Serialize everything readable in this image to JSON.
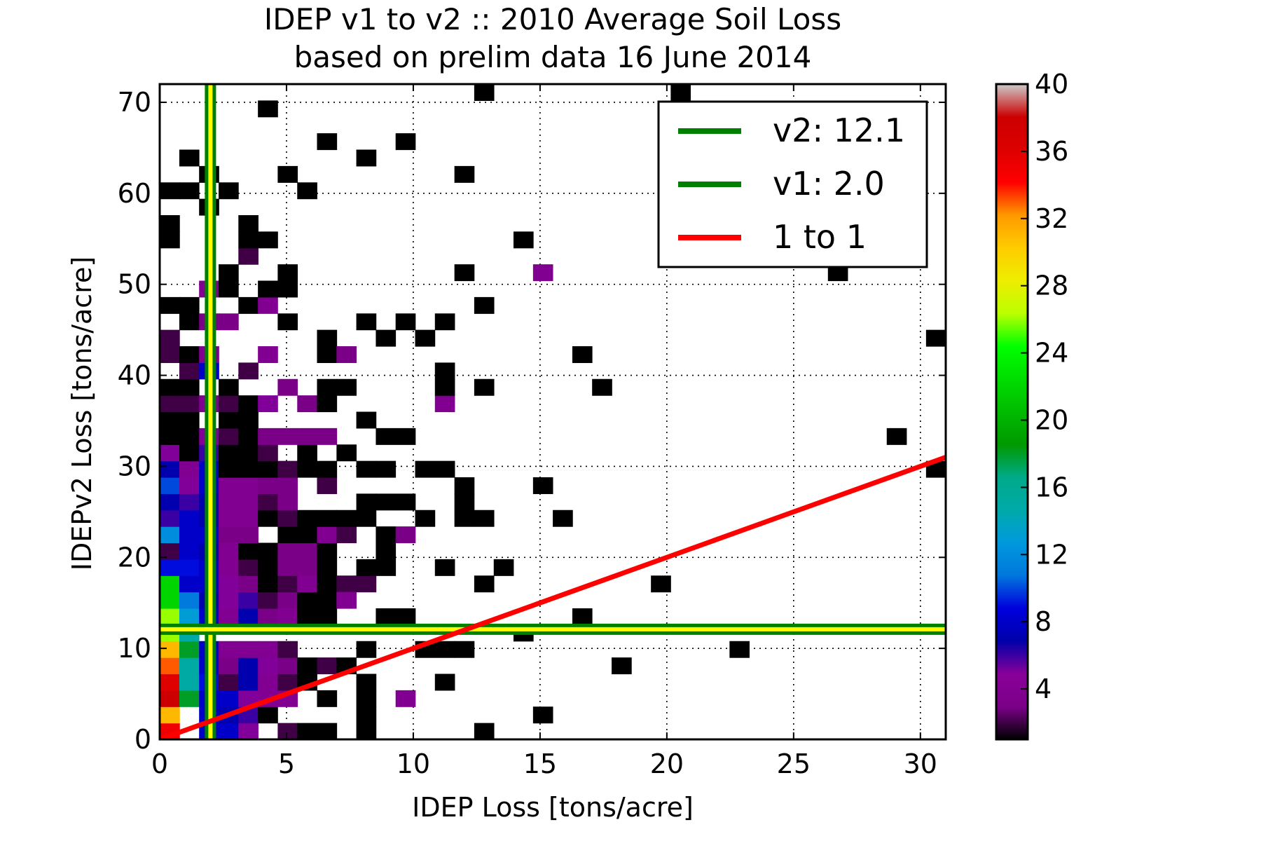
{
  "chart_data": {
    "type": "heatmap",
    "title": "IDEP v1 to v2 :: 2010 Average Soil Loss",
    "subtitle": "based on prelim data 16 June 2014",
    "xlabel": "IDEP Loss [tons/acre]",
    "ylabel": "IDEPv2 Loss [tons/acre]",
    "xlim": [
      0,
      31
    ],
    "ylim": [
      0,
      72
    ],
    "xticks": [
      0,
      5,
      10,
      15,
      20,
      25,
      30
    ],
    "yticks": [
      0,
      10,
      20,
      30,
      40,
      50,
      60,
      70
    ],
    "grid": true,
    "bin_width_x": 0.775,
    "bin_height_y": 1.8,
    "colorbar": {
      "min": 1,
      "max": 40,
      "ticks": [
        4,
        8,
        12,
        16,
        20,
        24,
        28,
        32,
        36,
        40
      ],
      "colormap": "nipy_spectral"
    },
    "cells": [
      [
        0.39,
        0.9,
        35
      ],
      [
        0.39,
        2.7,
        31
      ],
      [
        0.39,
        4.5,
        38
      ],
      [
        0.39,
        6.3,
        36
      ],
      [
        0.39,
        8.1,
        33
      ],
      [
        0.39,
        9.9,
        31
      ],
      [
        0.39,
        11.7,
        26
      ],
      [
        0.39,
        13.5,
        26
      ],
      [
        0.39,
        15.3,
        22
      ],
      [
        0.39,
        17.1,
        22
      ],
      [
        0.39,
        18.9,
        9
      ],
      [
        0.39,
        20.7,
        2
      ],
      [
        0.39,
        22.5,
        12
      ],
      [
        0.39,
        24.3,
        6
      ],
      [
        0.39,
        26.1,
        7
      ],
      [
        0.39,
        27.9,
        10
      ],
      [
        0.39,
        29.7,
        7
      ],
      [
        0.39,
        31.5,
        5
      ],
      [
        0.39,
        33.3,
        1
      ],
      [
        0.39,
        35.1,
        1
      ],
      [
        0.39,
        36.9,
        2
      ],
      [
        0.39,
        38.7,
        1
      ],
      [
        0.39,
        42.3,
        2
      ],
      [
        0.39,
        44.1,
        2
      ],
      [
        0.39,
        47.7,
        1
      ],
      [
        0.39,
        54.9,
        1
      ],
      [
        0.39,
        56.7,
        1
      ],
      [
        0.39,
        60.3,
        1
      ],
      [
        1.16,
        4.5,
        18
      ],
      [
        1.16,
        6.3,
        15
      ],
      [
        1.16,
        8.1,
        15
      ],
      [
        1.16,
        9.9,
        18
      ],
      [
        1.16,
        11.7,
        15
      ],
      [
        1.16,
        13.5,
        13
      ],
      [
        1.16,
        15.3,
        11
      ],
      [
        1.16,
        17.1,
        8
      ],
      [
        1.16,
        18.9,
        9
      ],
      [
        1.16,
        20.7,
        8
      ],
      [
        1.16,
        22.5,
        8
      ],
      [
        1.16,
        24.3,
        8
      ],
      [
        1.16,
        26.1,
        6
      ],
      [
        1.16,
        27.9,
        5
      ],
      [
        1.16,
        29.7,
        4
      ],
      [
        1.16,
        31.5,
        1
      ],
      [
        1.16,
        33.3,
        1
      ],
      [
        1.16,
        35.1,
        1
      ],
      [
        1.16,
        36.9,
        2
      ],
      [
        1.16,
        38.7,
        1
      ],
      [
        1.16,
        40.5,
        2
      ],
      [
        1.16,
        42.3,
        1
      ],
      [
        1.16,
        45.9,
        1
      ],
      [
        1.16,
        47.7,
        1
      ],
      [
        1.16,
        60.3,
        1
      ],
      [
        1.16,
        63.9,
        1
      ],
      [
        1.94,
        0.9,
        8
      ],
      [
        1.94,
        2.7,
        8
      ],
      [
        1.94,
        4.5,
        8
      ],
      [
        1.94,
        6.3,
        9
      ],
      [
        1.94,
        8.1,
        8
      ],
      [
        1.94,
        9.9,
        8
      ],
      [
        1.94,
        13.5,
        8
      ],
      [
        1.94,
        15.3,
        7
      ],
      [
        1.94,
        17.1,
        8
      ],
      [
        1.94,
        18.9,
        8
      ],
      [
        1.94,
        20.7,
        7
      ],
      [
        1.94,
        22.5,
        8
      ],
      [
        1.94,
        24.3,
        7
      ],
      [
        1.94,
        26.1,
        7
      ],
      [
        1.94,
        27.9,
        8
      ],
      [
        1.94,
        29.7,
        8
      ],
      [
        1.94,
        31.5,
        6
      ],
      [
        1.94,
        33.3,
        5
      ],
      [
        1.94,
        36.9,
        4
      ],
      [
        1.94,
        40.5,
        8
      ],
      [
        1.94,
        42.3,
        4
      ],
      [
        1.94,
        45.9,
        3
      ],
      [
        1.94,
        49.5,
        4
      ],
      [
        1.94,
        58.5,
        1
      ],
      [
        1.94,
        62.1,
        1
      ],
      [
        2.71,
        0.9,
        8
      ],
      [
        2.71,
        2.7,
        7
      ],
      [
        2.71,
        4.5,
        8
      ],
      [
        2.71,
        6.3,
        2
      ],
      [
        2.71,
        8.1,
        3
      ],
      [
        2.71,
        9.9,
        4
      ],
      [
        2.71,
        13.5,
        4
      ],
      [
        2.71,
        15.3,
        5
      ],
      [
        2.71,
        17.1,
        5
      ],
      [
        2.71,
        18.9,
        4
      ],
      [
        2.71,
        20.7,
        4
      ],
      [
        2.71,
        22.5,
        3
      ],
      [
        2.71,
        24.3,
        4
      ],
      [
        2.71,
        26.1,
        4
      ],
      [
        2.71,
        27.9,
        4
      ],
      [
        2.71,
        29.7,
        1
      ],
      [
        2.71,
        31.5,
        1
      ],
      [
        2.71,
        33.3,
        2
      ],
      [
        2.71,
        35.1,
        1
      ],
      [
        2.71,
        36.9,
        2
      ],
      [
        2.71,
        38.7,
        1
      ],
      [
        2.71,
        45.9,
        3
      ],
      [
        2.71,
        49.5,
        1
      ],
      [
        2.71,
        51.3,
        1
      ],
      [
        2.71,
        60.3,
        1
      ],
      [
        3.49,
        0.9,
        5
      ],
      [
        3.49,
        2.7,
        6
      ],
      [
        3.49,
        4.5,
        5
      ],
      [
        3.49,
        6.3,
        7
      ],
      [
        3.49,
        8.1,
        7
      ],
      [
        3.49,
        9.9,
        4
      ],
      [
        3.49,
        13.5,
        7
      ],
      [
        3.49,
        15.3,
        6
      ],
      [
        3.49,
        17.1,
        3
      ],
      [
        3.49,
        18.9,
        2
      ],
      [
        3.49,
        20.7,
        1
      ],
      [
        3.49,
        22.5,
        3
      ],
      [
        3.49,
        24.3,
        4
      ],
      [
        3.49,
        26.1,
        4
      ],
      [
        3.49,
        27.9,
        4
      ],
      [
        3.49,
        29.7,
        1
      ],
      [
        3.49,
        31.5,
        1
      ],
      [
        3.49,
        33.3,
        1
      ],
      [
        3.49,
        35.1,
        1
      ],
      [
        3.49,
        36.9,
        1
      ],
      [
        3.49,
        40.5,
        2
      ],
      [
        3.49,
        47.7,
        1
      ],
      [
        3.49,
        53.1,
        2
      ],
      [
        3.49,
        54.9,
        1
      ],
      [
        3.49,
        56.7,
        1
      ],
      [
        4.26,
        2.7,
        1
      ],
      [
        4.26,
        4.5,
        4
      ],
      [
        4.26,
        6.3,
        4
      ],
      [
        4.26,
        8.1,
        5
      ],
      [
        4.26,
        9.9,
        4
      ],
      [
        4.26,
        13.5,
        3
      ],
      [
        4.26,
        15.3,
        2
      ],
      [
        4.26,
        17.1,
        1
      ],
      [
        4.26,
        18.9,
        1
      ],
      [
        4.26,
        20.7,
        1
      ],
      [
        4.26,
        24.3,
        1
      ],
      [
        4.26,
        26.1,
        2
      ],
      [
        4.26,
        27.9,
        3
      ],
      [
        4.26,
        29.7,
        1
      ],
      [
        4.26,
        31.5,
        2
      ],
      [
        4.26,
        33.3,
        3
      ],
      [
        4.26,
        36.9,
        5
      ],
      [
        4.26,
        42.3,
        4
      ],
      [
        4.26,
        47.7,
        4
      ],
      [
        4.26,
        49.5,
        1
      ],
      [
        4.26,
        54.9,
        1
      ],
      [
        4.26,
        69.3,
        1
      ],
      [
        5.04,
        0.9,
        2
      ],
      [
        5.04,
        4.5,
        4
      ],
      [
        5.04,
        6.3,
        2
      ],
      [
        5.04,
        8.1,
        3
      ],
      [
        5.04,
        9.9,
        2
      ],
      [
        5.04,
        13.5,
        4
      ],
      [
        5.04,
        15.3,
        3
      ],
      [
        5.04,
        17.1,
        2
      ],
      [
        5.04,
        18.9,
        3
      ],
      [
        5.04,
        20.7,
        3
      ],
      [
        5.04,
        22.5,
        1
      ],
      [
        5.04,
        24.3,
        2
      ],
      [
        5.04,
        26.1,
        3
      ],
      [
        5.04,
        27.9,
        3
      ],
      [
        5.04,
        29.7,
        2
      ],
      [
        5.04,
        33.3,
        3
      ],
      [
        5.04,
        38.7,
        3
      ],
      [
        5.04,
        45.9,
        1
      ],
      [
        5.04,
        49.5,
        1
      ],
      [
        5.04,
        51.3,
        1
      ],
      [
        5.04,
        62.1,
        1
      ],
      [
        5.81,
        0.9,
        1
      ],
      [
        5.81,
        6.3,
        1
      ],
      [
        5.81,
        8.1,
        1
      ],
      [
        5.81,
        13.5,
        1
      ],
      [
        5.81,
        15.3,
        1
      ],
      [
        5.81,
        17.1,
        4
      ],
      [
        5.81,
        18.9,
        3
      ],
      [
        5.81,
        20.7,
        3
      ],
      [
        5.81,
        22.5,
        1
      ],
      [
        5.81,
        24.3,
        1
      ],
      [
        5.81,
        29.7,
        1
      ],
      [
        5.81,
        31.5,
        1
      ],
      [
        5.81,
        33.3,
        3
      ],
      [
        5.81,
        36.9,
        3
      ],
      [
        5.81,
        60.3,
        1
      ],
      [
        6.59,
        0.9,
        1
      ],
      [
        6.59,
        4.5,
        1
      ],
      [
        6.59,
        8.1,
        2
      ],
      [
        6.59,
        13.5,
        1
      ],
      [
        6.59,
        15.3,
        1
      ],
      [
        6.59,
        17.1,
        1
      ],
      [
        6.59,
        18.9,
        1
      ],
      [
        6.59,
        20.7,
        1
      ],
      [
        6.59,
        22.5,
        4
      ],
      [
        6.59,
        24.3,
        1
      ],
      [
        6.59,
        27.9,
        2
      ],
      [
        6.59,
        29.7,
        1
      ],
      [
        6.59,
        33.3,
        3
      ],
      [
        6.59,
        36.9,
        1
      ],
      [
        6.59,
        38.7,
        1
      ],
      [
        6.59,
        42.3,
        1
      ],
      [
        6.59,
        44.1,
        1
      ],
      [
        6.59,
        65.7,
        1
      ],
      [
        7.36,
        8.1,
        1
      ],
      [
        7.36,
        17.1,
        2
      ],
      [
        7.36,
        15.3,
        4
      ],
      [
        7.36,
        22.5,
        2
      ],
      [
        7.36,
        24.3,
        1
      ],
      [
        7.36,
        31.5,
        1
      ],
      [
        7.36,
        38.7,
        1
      ],
      [
        7.36,
        42.3,
        3
      ],
      [
        8.14,
        0.9,
        1
      ],
      [
        8.14,
        2.7,
        1
      ],
      [
        8.14,
        4.5,
        1
      ],
      [
        8.14,
        6.3,
        1
      ],
      [
        8.14,
        9.9,
        1
      ],
      [
        8.14,
        17.1,
        2
      ],
      [
        8.14,
        18.9,
        1
      ],
      [
        8.14,
        24.3,
        1
      ],
      [
        8.14,
        26.1,
        1
      ],
      [
        8.14,
        29.7,
        1
      ],
      [
        8.14,
        35.1,
        1
      ],
      [
        8.14,
        45.9,
        1
      ],
      [
        8.14,
        63.9,
        1
      ],
      [
        8.91,
        13.5,
        1
      ],
      [
        8.91,
        18.9,
        1
      ],
      [
        8.91,
        20.7,
        1
      ],
      [
        8.91,
        22.5,
        1
      ],
      [
        8.91,
        26.1,
        1
      ],
      [
        8.91,
        29.7,
        1
      ],
      [
        8.91,
        33.3,
        1
      ],
      [
        8.91,
        44.1,
        1
      ],
      [
        9.69,
        4.5,
        4
      ],
      [
        9.69,
        13.5,
        1
      ],
      [
        9.69,
        22.5,
        3
      ],
      [
        9.69,
        26.1,
        1
      ],
      [
        9.69,
        33.3,
        1
      ],
      [
        9.69,
        45.9,
        1
      ],
      [
        9.69,
        65.7,
        1
      ],
      [
        10.46,
        9.9,
        1
      ],
      [
        10.46,
        24.3,
        1
      ],
      [
        10.46,
        29.7,
        1
      ],
      [
        10.46,
        44.1,
        1
      ],
      [
        11.24,
        6.3,
        1
      ],
      [
        11.24,
        9.9,
        1
      ],
      [
        11.24,
        18.9,
        1
      ],
      [
        11.24,
        29.7,
        1
      ],
      [
        11.24,
        36.9,
        4
      ],
      [
        11.24,
        38.7,
        1
      ],
      [
        11.24,
        40.5,
        1
      ],
      [
        11.24,
        45.9,
        1
      ],
      [
        12.01,
        9.9,
        1
      ],
      [
        12.01,
        24.3,
        1
      ],
      [
        12.01,
        26.1,
        1
      ],
      [
        12.01,
        27.9,
        1
      ],
      [
        12.01,
        51.3,
        1
      ],
      [
        12.01,
        62.1,
        1
      ],
      [
        12.79,
        0.9,
        1
      ],
      [
        12.79,
        17.1,
        1
      ],
      [
        12.79,
        24.3,
        1
      ],
      [
        12.79,
        38.7,
        1
      ],
      [
        12.79,
        47.7,
        1
      ],
      [
        12.79,
        71.1,
        1
      ],
      [
        13.56,
        18.9,
        1
      ],
      [
        14.34,
        11.7,
        1
      ],
      [
        14.34,
        54.9,
        1
      ],
      [
        15.11,
        2.7,
        1
      ],
      [
        15.11,
        27.9,
        1
      ],
      [
        15.11,
        51.3,
        4
      ],
      [
        15.89,
        24.3,
        1
      ],
      [
        16.66,
        13.5,
        1
      ],
      [
        16.66,
        42.3,
        1
      ],
      [
        17.44,
        38.7,
        1
      ],
      [
        18.21,
        8.1,
        1
      ],
      [
        19.76,
        17.1,
        1
      ],
      [
        20.54,
        71.1,
        1
      ],
      [
        22.86,
        9.9,
        1
      ],
      [
        26.74,
        51.3,
        1
      ],
      [
        29.06,
        33.3,
        1
      ],
      [
        30.61,
        29.7,
        1
      ],
      [
        30.61,
        44.1,
        1
      ]
    ],
    "vlines": [
      {
        "x": 2.0,
        "label": "v1: 2.0"
      }
    ],
    "hlines": [
      {
        "y": 12.1,
        "label": "v2: 12.1"
      }
    ],
    "reference_line": {
      "label": "1 to 1",
      "from": [
        0,
        0
      ],
      "to": [
        31,
        31
      ]
    },
    "legend": {
      "placement": "upper right",
      "entries": [
        {
          "label": "v2: 12.1",
          "color": "#008000"
        },
        {
          "label": "v1: 2.0",
          "color": "#008000"
        },
        {
          "label": "1 to 1",
          "color": "#ff0000"
        }
      ]
    },
    "colors": {
      "avg_line": "#008000",
      "avg_line_core": "#ffff00",
      "one_to_one": "#ff0000"
    }
  }
}
